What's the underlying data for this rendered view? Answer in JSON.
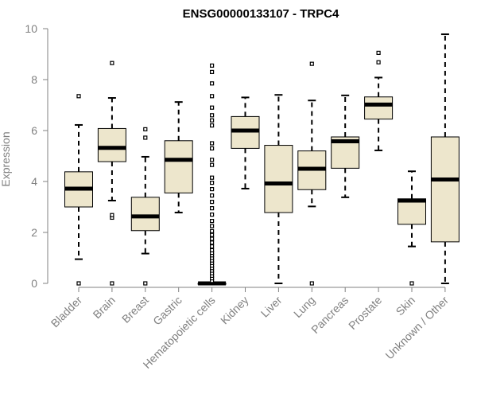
{
  "chart_data": {
    "type": "boxplot",
    "title": "ENSG00000133107 - TRPC4",
    "xlabel": "",
    "ylabel": "Expression",
    "ylim": [
      0,
      10
    ],
    "yticks": [
      0,
      2,
      4,
      6,
      8,
      10
    ],
    "box_color": "#ede6cc",
    "line_color": "#000000",
    "axis_color": "#808080",
    "categories": [
      "Bladder",
      "Brain",
      "Breast",
      "Gastric",
      "Hematopoietic cells",
      "Kidney",
      "Liver",
      "Lung",
      "Pancreas",
      "Prostate",
      "Skin",
      "Unknown / Other"
    ],
    "boxes": [
      {
        "name": "Bladder",
        "min": 0.95,
        "q1": 3.0,
        "median": 3.72,
        "q3": 4.38,
        "max": 6.22,
        "outliers": [
          0.0,
          7.35
        ]
      },
      {
        "name": "Brain",
        "min": 3.25,
        "q1": 4.78,
        "median": 5.32,
        "q3": 6.08,
        "max": 7.28,
        "outliers": [
          0.0,
          2.58,
          2.68,
          8.65
        ]
      },
      {
        "name": "Breast",
        "min": 1.17,
        "q1": 2.07,
        "median": 2.63,
        "q3": 3.38,
        "max": 4.97,
        "outliers": [
          0.0,
          5.72,
          6.05
        ]
      },
      {
        "name": "Gastric",
        "min": 2.78,
        "q1": 3.55,
        "median": 4.85,
        "q3": 5.6,
        "max": 7.12,
        "outliers": []
      },
      {
        "name": "Hematopoietic cells",
        "min": 0.0,
        "q1": 0.0,
        "median": 0.0,
        "q3": 0.0,
        "max": 0.0,
        "outliers": [
          0.1,
          0.2,
          0.3,
          0.4,
          0.5,
          0.6,
          0.7,
          0.8,
          0.9,
          1.0,
          1.1,
          1.2,
          1.3,
          1.45,
          1.6,
          1.75,
          1.9,
          2.05,
          2.25,
          2.45,
          2.7,
          2.95,
          3.2,
          3.45,
          3.7,
          3.95,
          4.15,
          4.65,
          4.85,
          5.3,
          5.5,
          6.2,
          6.4,
          6.6,
          6.9,
          7.35,
          7.85,
          8.3,
          8.55
        ]
      },
      {
        "name": "Kidney",
        "min": 3.72,
        "q1": 5.3,
        "median": 6.0,
        "q3": 6.55,
        "max": 7.3,
        "outliers": []
      },
      {
        "name": "Liver",
        "min": 0.0,
        "q1": 2.78,
        "median": 3.92,
        "q3": 5.42,
        "max": 7.4,
        "outliers": []
      },
      {
        "name": "Lung",
        "min": 3.02,
        "q1": 3.68,
        "median": 4.5,
        "q3": 5.2,
        "max": 7.18,
        "outliers": [
          0.0,
          8.62
        ]
      },
      {
        "name": "Pancreas",
        "min": 3.38,
        "q1": 4.52,
        "median": 5.58,
        "q3": 5.75,
        "max": 7.38,
        "outliers": []
      },
      {
        "name": "Prostate",
        "min": 5.22,
        "q1": 6.45,
        "median": 7.02,
        "q3": 7.32,
        "max": 8.08,
        "outliers": [
          8.68,
          9.05
        ]
      },
      {
        "name": "Skin",
        "min": 1.45,
        "q1": 2.32,
        "median": 3.25,
        "q3": 3.32,
        "max": 4.4,
        "outliers": [
          0.0
        ]
      },
      {
        "name": "Unknown / Other",
        "min": 0.0,
        "q1": 1.63,
        "median": 4.08,
        "q3": 5.75,
        "max": 9.78,
        "outliers": []
      }
    ]
  }
}
